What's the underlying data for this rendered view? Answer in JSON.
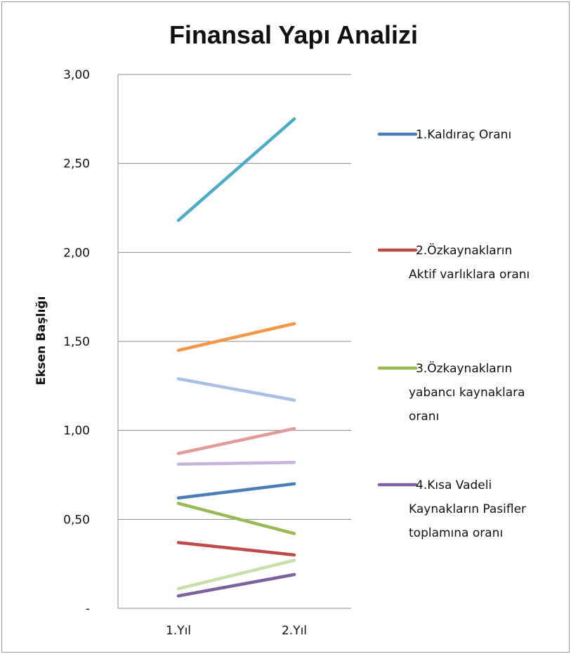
{
  "chart_data": {
    "type": "line",
    "title": "Finansal Yapı Analizi",
    "ylabel": "Eksen Başlığı",
    "xlabel": "",
    "categories": [
      "1.Yıl",
      "2.Yıl"
    ],
    "ylim": [
      0,
      3
    ],
    "yticks": [
      {
        "value": 0,
        "label": "-"
      },
      {
        "value": 0.5,
        "label": "0,50"
      },
      {
        "value": 1.0,
        "label": "1,00"
      },
      {
        "value": 1.5,
        "label": "1,50"
      },
      {
        "value": 2.0,
        "label": "2,00"
      },
      {
        "value": 2.5,
        "label": "2,50"
      },
      {
        "value": 3.0,
        "label": "3,00"
      }
    ],
    "grid": true,
    "legend_position": "right",
    "legend": [
      {
        "lines": [
          "1.Kaldıraç Oranı"
        ],
        "color": "#4a7ebb"
      },
      {
        "lines": [
          "2.Özkaynakların",
          "Aktif varlıklara oranı"
        ],
        "color": "#be4b48"
      },
      {
        "lines": [
          "3.Özkaynakların",
          "yabancı kaynaklara",
          "oranı"
        ],
        "color": "#98b954"
      },
      {
        "lines": [
          "4.Kısa Vadeli",
          "Kaynakların Pasifler",
          "toplamına oranı"
        ],
        "color": "#7d60a0"
      }
    ],
    "series": [
      {
        "color": "#4bacc6",
        "values": [
          2.18,
          2.75
        ]
      },
      {
        "color": "#f79646",
        "values": [
          1.45,
          1.6
        ]
      },
      {
        "color": "#a9c0e4",
        "values": [
          1.29,
          1.17
        ]
      },
      {
        "color": "#e39a99",
        "values": [
          0.87,
          1.01
        ]
      },
      {
        "color": "#c7b4dc",
        "values": [
          0.81,
          0.82
        ]
      },
      {
        "color": "#4a7ebb",
        "values": [
          0.62,
          0.7
        ]
      },
      {
        "color": "#98b954",
        "values": [
          0.59,
          0.42
        ]
      },
      {
        "color": "#be4b48",
        "values": [
          0.37,
          0.3
        ]
      },
      {
        "color": "#c8dfa8",
        "values": [
          0.11,
          0.27
        ]
      },
      {
        "color": "#7d60a0",
        "values": [
          0.07,
          0.19
        ]
      }
    ]
  }
}
